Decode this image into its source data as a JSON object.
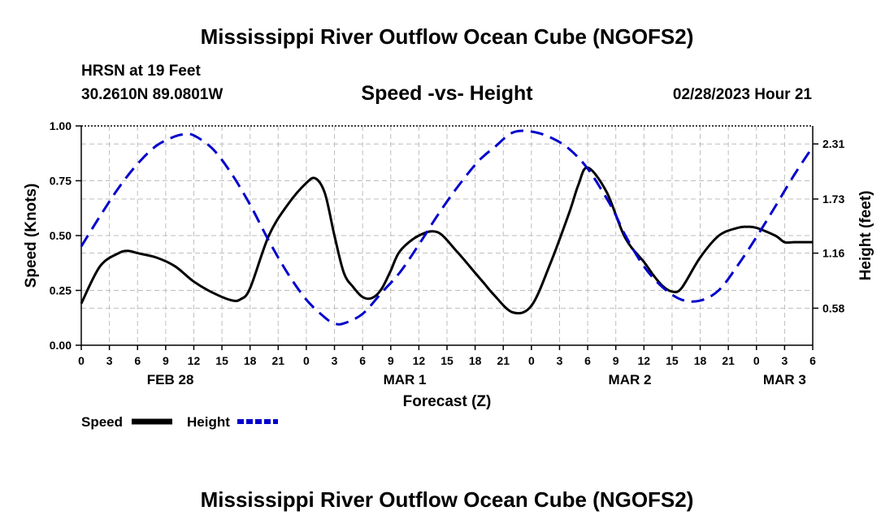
{
  "page_title": "Mississippi River Outflow Ocean Cube (NGOFS2)",
  "footer_title": "Mississippi River Outflow Ocean Cube (NGOFS2)",
  "station": {
    "name": "HRSN at 19 Feet",
    "coords": "30.2610N  89.0801W"
  },
  "datetime": "02/28/2023 Hour 21",
  "chart_data": {
    "type": "line",
    "title": "Speed -vs- Height",
    "xlabel": "Forecast (Z)",
    "ylabel": "Speed (Knots)",
    "y2label": "Height (feet)",
    "ylim": [
      0,
      1
    ],
    "y2lim": [
      0.19,
      2.5
    ],
    "x_range_hours": [
      0,
      78
    ],
    "yticks": [
      "0.00",
      "0.25",
      "0.50",
      "0.75",
      "1.00"
    ],
    "yticks_values": [
      0,
      0.25,
      0.5,
      0.75,
      1.0
    ],
    "y2ticks": [
      "0.58",
      "1.16",
      "1.73",
      "2.31"
    ],
    "y2ticks_values": [
      0.58,
      1.16,
      1.73,
      2.31
    ],
    "xtick_labels": [
      "0",
      "3",
      "6",
      "9",
      "12",
      "15",
      "18",
      "21",
      "0",
      "3",
      "6",
      "9",
      "12",
      "15",
      "18",
      "21",
      "0",
      "3",
      "6",
      "9",
      "12",
      "15",
      "18",
      "21",
      "0",
      "3",
      "6"
    ],
    "date_labels": [
      {
        "label": "FEB 28",
        "hour": 9.5
      },
      {
        "label": "MAR 1",
        "hour": 34.5
      },
      {
        "label": "MAR 2",
        "hour": 58.5
      },
      {
        "label": "MAR 3",
        "hour": 75
      }
    ],
    "grid": true,
    "legend_position": "bottom-left",
    "series": [
      {
        "name": "Speed",
        "axis": "left",
        "color": "#000000",
        "dash": "solid",
        "x": [
          0,
          2,
          4,
          5,
          6,
          8,
          10,
          12,
          14,
          16,
          17,
          18,
          20,
          22,
          24,
          25,
          26,
          27,
          28,
          29,
          30,
          31,
          32,
          33,
          34,
          36,
          38,
          40,
          42,
          43,
          44,
          46,
          48,
          50,
          52,
          53,
          54,
          56,
          58,
          60,
          61,
          62,
          63,
          64,
          66,
          68,
          70,
          71,
          72,
          74,
          75,
          76,
          77,
          78
        ],
        "y": [
          0.19,
          0.36,
          0.42,
          0.43,
          0.42,
          0.4,
          0.36,
          0.29,
          0.24,
          0.205,
          0.21,
          0.26,
          0.5,
          0.64,
          0.74,
          0.76,
          0.69,
          0.5,
          0.33,
          0.265,
          0.22,
          0.215,
          0.255,
          0.34,
          0.43,
          0.5,
          0.515,
          0.43,
          0.33,
          0.28,
          0.23,
          0.15,
          0.18,
          0.37,
          0.6,
          0.73,
          0.81,
          0.7,
          0.49,
          0.38,
          0.32,
          0.27,
          0.245,
          0.26,
          0.4,
          0.5,
          0.535,
          0.54,
          0.535,
          0.5,
          0.47,
          0.47,
          0.47,
          0.47
        ]
      },
      {
        "name": "Height",
        "axis": "right",
        "color": "#0000cc",
        "dash": "dashed",
        "x": [
          0,
          2,
          4,
          6,
          8,
          10,
          11,
          12,
          14,
          16,
          18,
          20,
          22,
          24,
          26,
          27,
          28,
          30,
          32,
          34,
          36,
          38,
          40,
          42,
          43,
          44,
          46,
          48,
          50,
          52,
          54,
          56,
          57,
          58,
          60,
          62,
          64,
          66,
          68,
          70,
          72,
          74,
          76,
          78
        ],
        "y": [
          1.23,
          1.55,
          1.85,
          2.1,
          2.29,
          2.39,
          2.41,
          2.4,
          2.26,
          2.0,
          1.67,
          1.29,
          0.95,
          0.67,
          0.48,
          0.42,
          0.42,
          0.52,
          0.74,
          0.96,
          1.25,
          1.56,
          1.84,
          2.09,
          2.19,
          2.27,
          2.43,
          2.44,
          2.38,
          2.26,
          2.05,
          1.74,
          1.56,
          1.35,
          1.02,
          0.8,
          0.67,
          0.66,
          0.77,
          1.03,
          1.33,
          1.65,
          1.98,
          2.28
        ]
      }
    ]
  }
}
